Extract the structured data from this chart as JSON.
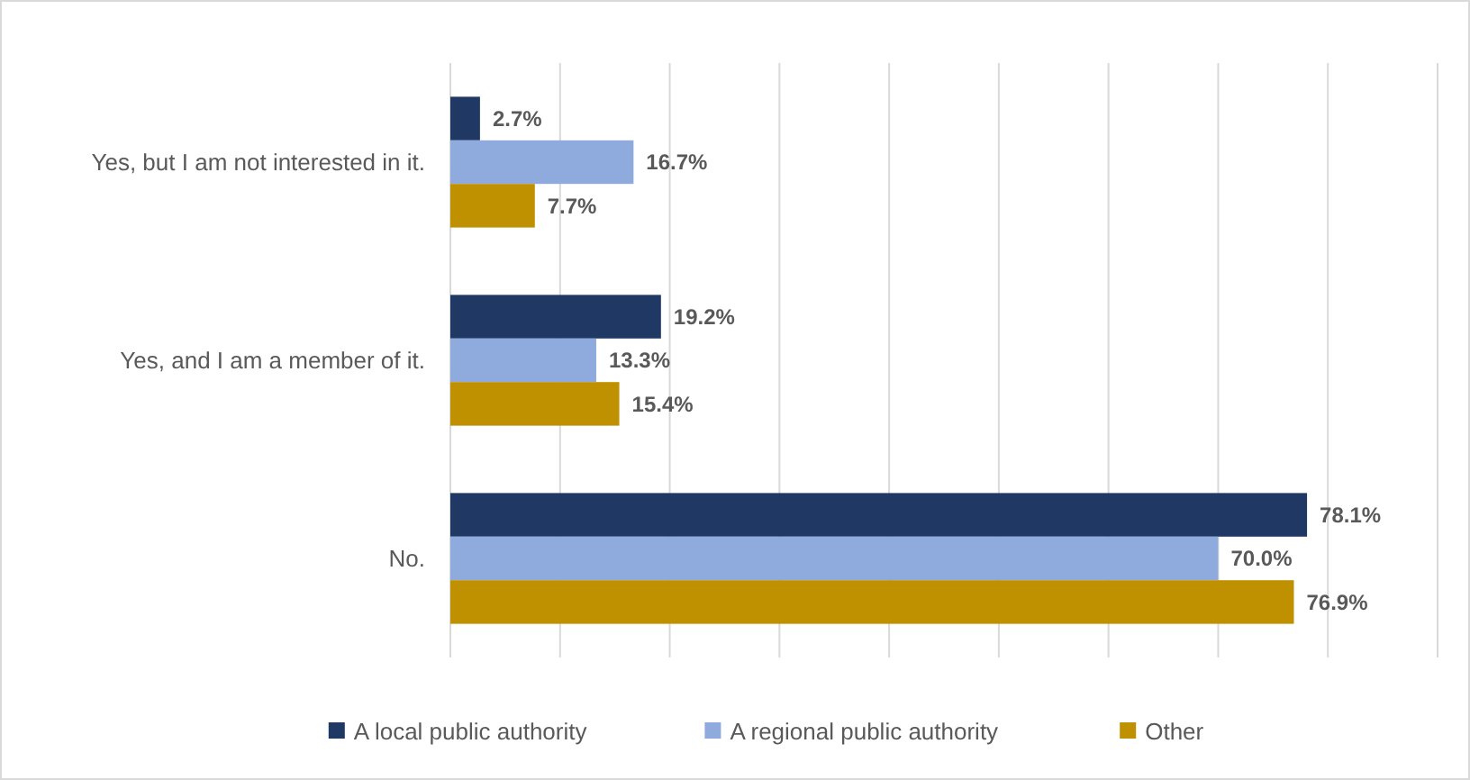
{
  "chart_data": {
    "type": "bar",
    "orientation": "horizontal",
    "categories": [
      "Yes, but I am not interested in it.",
      "Yes, and I am a member of it.",
      "No."
    ],
    "series": [
      {
        "name": "A local public authority",
        "color": "#203864",
        "values": [
          2.7,
          19.2,
          78.1
        ],
        "value_labels": [
          "2.7%",
          "19.2%",
          "78.1%"
        ]
      },
      {
        "name": "A regional public authority",
        "color": "#8faadc",
        "values": [
          16.7,
          13.3,
          70.0
        ],
        "value_labels": [
          "16.7%",
          "13.3%",
          "70.0%"
        ]
      },
      {
        "name": "Other",
        "color": "#bf9000",
        "values": [
          7.7,
          15.4,
          76.9
        ],
        "value_labels": [
          "7.7%",
          "15.4%",
          "76.9%"
        ]
      }
    ],
    "xlim": [
      0,
      90
    ],
    "xticks": [
      {
        "value": 0,
        "label": null
      },
      {
        "value": 10,
        "label": null
      },
      {
        "value": 20,
        "label": null
      },
      {
        "value": 30,
        "label": null
      },
      {
        "value": 40,
        "label": null
      },
      {
        "value": 50,
        "label": null
      },
      {
        "value": 60,
        "label": null
      },
      {
        "value": 70,
        "label": null
      },
      {
        "value": 80,
        "label": null
      },
      {
        "value": 90,
        "label": null
      }
    ],
    "grid": "x",
    "tick_labels": "y",
    "legend": "bottom"
  }
}
